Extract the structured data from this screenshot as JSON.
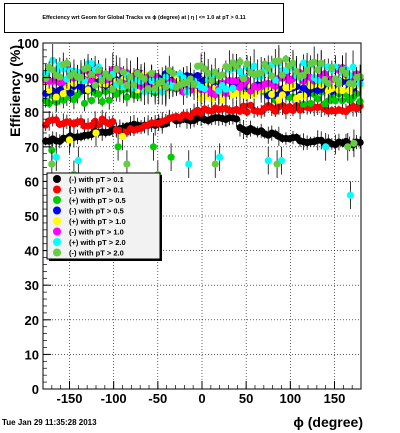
{
  "chart_data": {
    "type": "scatter",
    "title": "Effeciency wrt Geom for Global Tracks vs ϕ (degree) at | η | <= 1.0 at pT > 0.11",
    "xlabel": "ϕ (degree)",
    "ylabel": "Efficiency (%)",
    "xlim": [
      -180,
      180
    ],
    "ylim": [
      0,
      100
    ],
    "xticks": [
      -150,
      -100,
      -50,
      0,
      50,
      100,
      150
    ],
    "yticks": [
      0,
      10,
      20,
      30,
      40,
      50,
      60,
      70,
      80,
      90,
      100
    ],
    "grid": true,
    "legend_position": "left-middle",
    "series": [
      {
        "name": "(-) with pT > 0.1",
        "color": "#000000",
        "bias": 75,
        "amp": 4,
        "scatter": 0.5,
        "outliers": []
      },
      {
        "name": "(-) with pT > 0.1",
        "color": "#ff0000",
        "bias": 81,
        "amp": 3,
        "scatter": 1.2,
        "outliers": []
      },
      {
        "name": "(+) with pT > 0.5",
        "color": "#00cc00",
        "bias": 86,
        "amp": 2,
        "scatter": 2.0,
        "outliers": [
          [
            -170,
            69
          ],
          [
            -95,
            70
          ],
          [
            -55,
            70
          ],
          [
            -35,
            67
          ]
        ]
      },
      {
        "name": "(-) with pT > 0.5",
        "color": "#0000ff",
        "bias": 88,
        "amp": 2,
        "scatter": 1.5,
        "outliers": []
      },
      {
        "name": "(+) with pT > 1.0",
        "color": "#ffff00",
        "bias": 87,
        "amp": 2,
        "scatter": 2.5,
        "outliers": [
          [
            -150,
            72
          ],
          [
            -120,
            74
          ],
          [
            -90,
            73
          ]
        ]
      },
      {
        "name": "(-) with pT > 1.0",
        "color": "#ff00ff",
        "bias": 89,
        "amp": 2,
        "scatter": 2.0,
        "outliers": []
      },
      {
        "name": "(+) with pT > 2.0",
        "color": "#00ffff",
        "bias": 90,
        "amp": 2,
        "scatter": 3.0,
        "outliers": [
          [
            -165,
            67
          ],
          [
            -140,
            66
          ],
          [
            -15,
            65
          ],
          [
            20,
            67
          ],
          [
            75,
            66
          ],
          [
            90,
            66
          ],
          [
            140,
            70
          ],
          [
            168,
            56
          ]
        ]
      },
      {
        "name": "(-) with pT > 2.0",
        "color": "#66cc44",
        "bias": 91,
        "amp": 2,
        "scatter": 3.0,
        "outliers": [
          [
            -170,
            65
          ],
          [
            -145,
            62
          ],
          [
            -85,
            65
          ],
          [
            -50,
            62
          ],
          [
            15,
            65
          ],
          [
            85,
            65
          ],
          [
            165,
            70
          ],
          [
            172,
            71
          ]
        ]
      }
    ]
  },
  "footer": "Tue Jan 29 11:35:28 2013"
}
